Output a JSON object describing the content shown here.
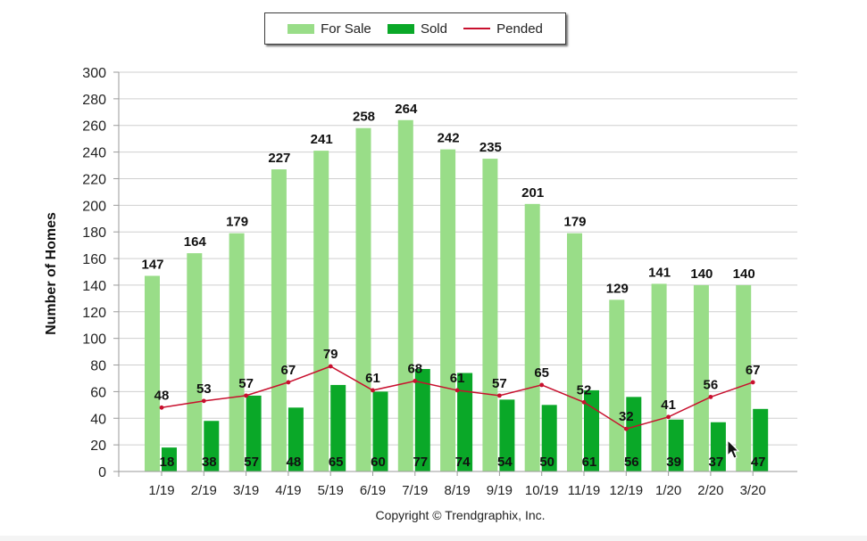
{
  "chart_data": {
    "type": "bar",
    "categories": [
      "1/19",
      "2/19",
      "3/19",
      "4/19",
      "5/19",
      "6/19",
      "7/19",
      "8/19",
      "9/19",
      "10/19",
      "11/19",
      "12/19",
      "1/20",
      "2/20",
      "3/20"
    ],
    "series": [
      {
        "name": "For Sale",
        "kind": "bar",
        "color": "#99dd88",
        "values": [
          147,
          164,
          179,
          227,
          241,
          258,
          264,
          242,
          235,
          201,
          179,
          129,
          141,
          140,
          140
        ]
      },
      {
        "name": "Sold",
        "kind": "bar",
        "color": "#0aa828",
        "values": [
          18,
          38,
          57,
          48,
          65,
          60,
          77,
          74,
          54,
          50,
          61,
          56,
          39,
          37,
          47
        ]
      },
      {
        "name": "Pended",
        "kind": "line",
        "color": "#c8102e",
        "values": [
          48,
          53,
          57,
          67,
          79,
          61,
          68,
          61,
          57,
          65,
          52,
          32,
          41,
          56,
          67
        ]
      }
    ],
    "ylabel": "Number of Homes",
    "xlabel": "",
    "ylim": [
      0,
      300
    ],
    "yticks": [
      0,
      20,
      40,
      60,
      80,
      100,
      120,
      140,
      160,
      180,
      200,
      220,
      240,
      260,
      280,
      300
    ],
    "grid": true,
    "legend_position": "top-center"
  },
  "footer": {
    "copyright": "Copyright © Trendgraphix, Inc."
  }
}
